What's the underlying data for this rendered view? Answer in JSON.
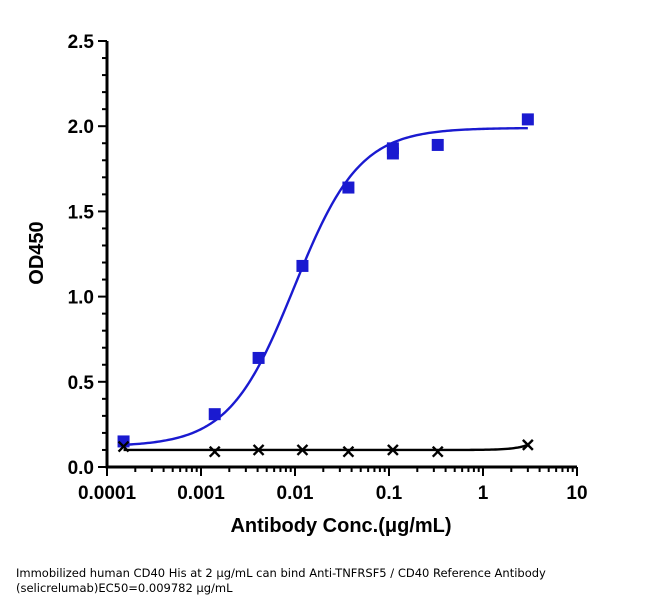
{
  "chart_data": {
    "type": "scatter",
    "xlabel": "Antibody Conc.(μg/mL)",
    "ylabel": "OD450",
    "xscale": "log",
    "xlim": [
      0.0001,
      10
    ],
    "ylim": [
      0,
      2.5
    ],
    "x_ticks": [
      "0.0001",
      "0.001",
      "0.01",
      "0.1",
      "1",
      "10"
    ],
    "y_ticks": [
      "0.0",
      "0.5",
      "1.0",
      "1.5",
      "2.0",
      "2.5"
    ],
    "grid": false,
    "series": [
      {
        "marker": "square",
        "color": "#1a1ad0",
        "fit": "sigmoidal 4PL",
        "points": [
          {
            "x": 0.00015,
            "y": 0.15
          },
          {
            "x": 0.0014,
            "y": 0.31
          },
          {
            "x": 0.0041,
            "y": 0.64
          },
          {
            "x": 0.012,
            "y": 1.18
          },
          {
            "x": 0.037,
            "y": 1.64
          },
          {
            "x": 0.11,
            "y": 1.87
          },
          {
            "x": 0.11,
            "y": 1.84
          },
          {
            "x": 0.33,
            "y": 1.89
          },
          {
            "x": 3.0,
            "y": 2.04
          }
        ]
      },
      {
        "marker": "x",
        "color": "#000000",
        "fit": "flat line",
        "points": [
          {
            "x": 0.00015,
            "y": 0.12
          },
          {
            "x": 0.0014,
            "y": 0.09
          },
          {
            "x": 0.0041,
            "y": 0.1
          },
          {
            "x": 0.012,
            "y": 0.1
          },
          {
            "x": 0.037,
            "y": 0.09
          },
          {
            "x": 0.11,
            "y": 0.1
          },
          {
            "x": 0.33,
            "y": 0.09
          },
          {
            "x": 3.0,
            "y": 0.13
          }
        ]
      }
    ]
  },
  "caption": {
    "line1": "Immobilized human CD40 His at 2  μg/mL can bind  Anti-TNFRSF5 / CD40 Reference Antibody",
    "line2": "(selicrelumab)EC50=0.009782 μg/mL"
  }
}
